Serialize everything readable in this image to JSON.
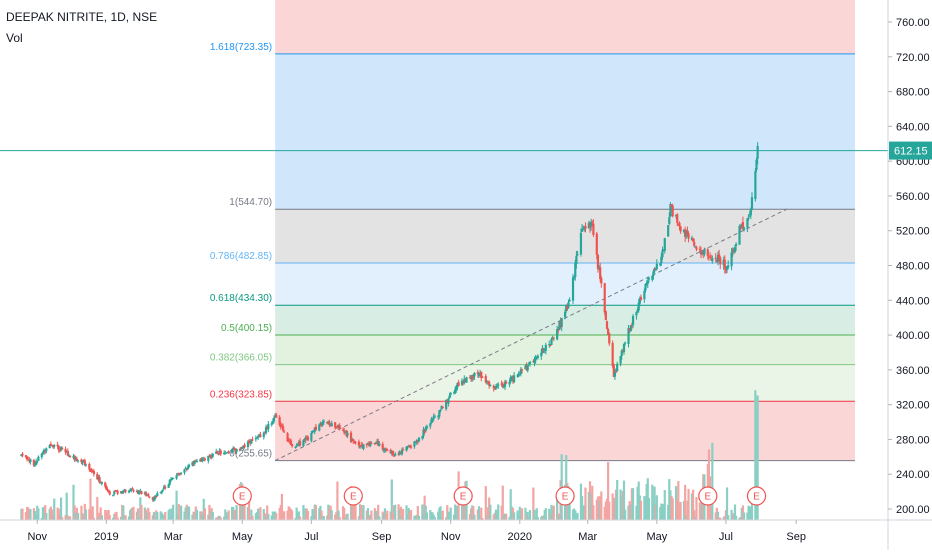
{
  "header": {
    "title": "DEEPAK NITRITE, 1D, NSE",
    "indicator": "Vol"
  },
  "colors": {
    "up": "#26a69a",
    "down": "#ef5350",
    "volume_up": "#89cfc3",
    "volume_down": "#f3a5a3",
    "price_line": "#26a69a",
    "trend": "#787b86",
    "axis_text": "#131722",
    "earnings": "#ef5350"
  },
  "chart_data": {
    "type": "candlestick",
    "symbol": "DEEPAK NITRITE",
    "interval": "1D",
    "exchange": "NSE",
    "last_price": "612.15",
    "ylim": [
      190,
      790
    ],
    "y_ticks": [
      "200.00",
      "240.00",
      "280.00",
      "320.00",
      "360.00",
      "400.00",
      "440.00",
      "480.00",
      "520.00",
      "560.00",
      "600.00",
      "640.00",
      "680.00",
      "720.00",
      "760.00"
    ],
    "x_ticks": [
      "Nov",
      "2019",
      "Mar",
      "May",
      "Jul",
      "Sep",
      "Nov",
      "2020",
      "Mar",
      "May",
      "Jul",
      "Sep"
    ],
    "fibonacci": {
      "levels": [
        {
          "label": "1.618(723.35)",
          "value": 723.35,
          "color": "#2196f3",
          "fill": "#cfe6fb"
        },
        {
          "label": "1(544.70)",
          "value": 544.7,
          "color": "#787b86",
          "fill": "#e3e3e3"
        },
        {
          "label": "0.786(482.85)",
          "value": 482.85,
          "color": "#64b5f6",
          "fill": "#e1f0fc"
        },
        {
          "label": "0.618(434.30)",
          "value": 434.3,
          "color": "#089981",
          "fill": "#d8eee5"
        },
        {
          "label": "0.5(400.15)",
          "value": 400.15,
          "color": "#4caf50",
          "fill": "#e3f2df"
        },
        {
          "label": "0.382(366.05)",
          "value": 366.05,
          "color": "#81c784",
          "fill": "#ebf5e7"
        },
        {
          "label": "0.236(323.85)",
          "value": 323.85,
          "color": "#f23645",
          "fill": "#fad6d6"
        },
        {
          "label": "0(255.65)",
          "value": 255.65,
          "color": "#787b86",
          "fill": ""
        }
      ],
      "extension_top_fill": "#fad6d6"
    },
    "trendline": {
      "from": [
        "2019-05-30",
        255.65
      ],
      "to": [
        "2020-08-24",
        545
      ]
    },
    "earnings_markers": [
      "2019-05-01",
      "2019-08-07",
      "2019-11-12",
      "2020-02-10",
      "2020-06-15",
      "2020-07-28"
    ],
    "earnings_label": "E",
    "price_path": [
      [
        "2018-10-18",
        262
      ],
      [
        "2018-10-30",
        252
      ],
      [
        "2018-11-12",
        276
      ],
      [
        "2018-11-30",
        262
      ],
      [
        "2018-12-14",
        252
      ],
      [
        "2019-01-04",
        218
      ],
      [
        "2019-01-25",
        222
      ],
      [
        "2019-02-12",
        212
      ],
      [
        "2019-03-01",
        236
      ],
      [
        "2019-03-22",
        255
      ],
      [
        "2019-04-10",
        265
      ],
      [
        "2019-04-26",
        268
      ],
      [
        "2019-05-14",
        280
      ],
      [
        "2019-05-31",
        306
      ],
      [
        "2019-06-14",
        270
      ],
      [
        "2019-06-28",
        282
      ],
      [
        "2019-07-12",
        302
      ],
      [
        "2019-07-26",
        294
      ],
      [
        "2019-08-12",
        270
      ],
      [
        "2019-08-26",
        276
      ],
      [
        "2019-09-13",
        262
      ],
      [
        "2019-10-02",
        278
      ],
      [
        "2019-10-22",
        312
      ],
      [
        "2019-11-08",
        345
      ],
      [
        "2019-11-25",
        356
      ],
      [
        "2019-12-10",
        338
      ],
      [
        "2019-12-26",
        350
      ],
      [
        "2020-01-14",
        372
      ],
      [
        "2020-01-31",
        395
      ],
      [
        "2020-02-14",
        440
      ],
      [
        "2020-02-24",
        520
      ],
      [
        "2020-03-05",
        526
      ],
      [
        "2020-03-13",
        455
      ],
      [
        "2020-03-24",
        352
      ],
      [
        "2020-04-06",
        405
      ],
      [
        "2020-04-22",
        460
      ],
      [
        "2020-05-05",
        486
      ],
      [
        "2020-05-13",
        545
      ],
      [
        "2020-05-22",
        525
      ],
      [
        "2020-06-05",
        500
      ],
      [
        "2020-06-23",
        488
      ],
      [
        "2020-07-02",
        478
      ],
      [
        "2020-07-13",
        520
      ],
      [
        "2020-07-22",
        538
      ],
      [
        "2020-07-29",
        612
      ]
    ]
  }
}
